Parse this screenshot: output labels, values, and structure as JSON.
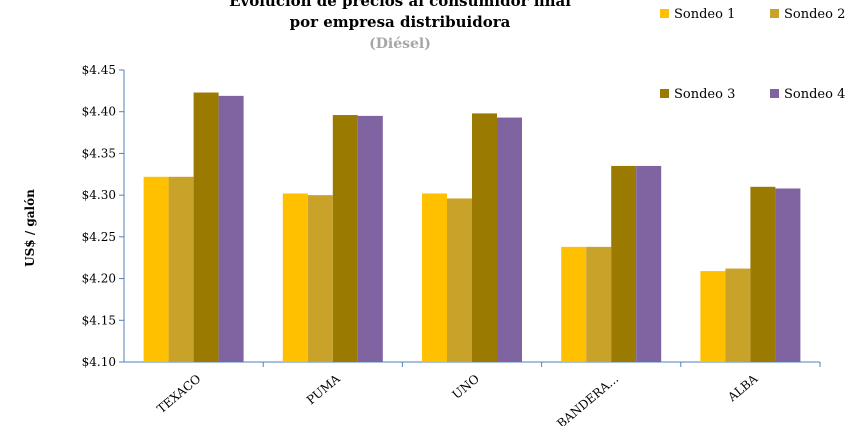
{
  "chart_data": {
    "type": "bar",
    "title_line1": "Evolución de precios al consumidor final",
    "title_line2": "por empresa distribuidora",
    "subtitle": "(Diésel)",
    "xlabel": "",
    "ylabel": "US$ / galón",
    "ylim": [
      4.1,
      4.45
    ],
    "y_ticks": [
      "$4.10",
      "$4.15",
      "$4.20",
      "$4.25",
      "$4.30",
      "$4.35",
      "$4.40",
      "$4.45"
    ],
    "y_tick_values": [
      4.1,
      4.15,
      4.2,
      4.25,
      4.3,
      4.35,
      4.4,
      4.45
    ],
    "categories": [
      "TEXACO",
      "PUMA",
      "UNO",
      "BANDERA...",
      "ALBA"
    ],
    "series": [
      {
        "name": "Sondeo 1",
        "color": "#ffc000",
        "values": [
          4.322,
          4.302,
          4.302,
          4.238,
          4.209
        ]
      },
      {
        "name": "Sondeo 2",
        "color": "#c9a22a",
        "values": [
          4.322,
          4.3,
          4.296,
          4.238,
          4.212
        ]
      },
      {
        "name": "Sondeo 3",
        "color": "#9a7a00",
        "values": [
          4.423,
          4.396,
          4.398,
          4.335,
          4.31
        ]
      },
      {
        "name": "Sondeo 4",
        "color": "#8064a2",
        "values": [
          4.419,
          4.395,
          4.393,
          4.335,
          4.308
        ]
      }
    ],
    "grid": false,
    "legend_position": "top-right"
  }
}
